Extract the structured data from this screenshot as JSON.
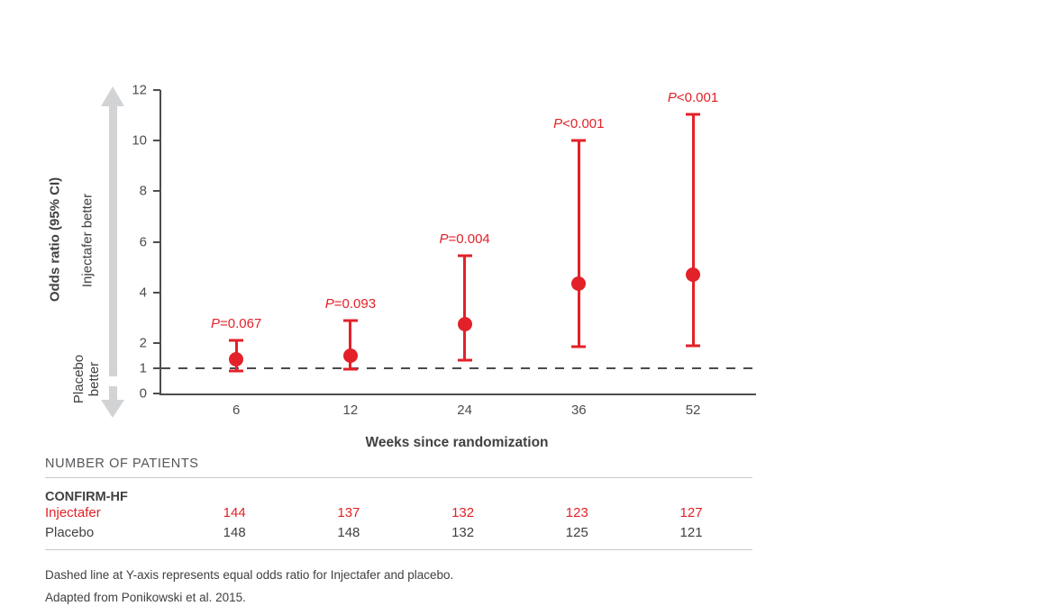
{
  "colors": {
    "red": "#e32128",
    "axis": "#4d4d4f",
    "text_dark": "#414042",
    "arrow_gray": "#d2d3d5",
    "rule_gray": "#c8c9cb"
  },
  "chart": {
    "y_axis_label": "Odds ratio (95% CI)",
    "x_axis_label": "Weeks since randomization",
    "direction_up_label": "Injectafer better",
    "direction_down_label": "Placebo\nbetter"
  },
  "chart_data": {
    "type": "scatter",
    "title": "",
    "xlabel": "Weeks since randomization",
    "ylabel": "Odds ratio (95% CI)",
    "ylim": [
      0,
      12
    ],
    "yticks": [
      0,
      1,
      2,
      4,
      6,
      8,
      10,
      12
    ],
    "x": [
      6,
      12,
      24,
      36,
      52
    ],
    "x_tick_labels": [
      "6",
      "12",
      "24",
      "36",
      "52"
    ],
    "reference_line_y": 1,
    "grid": false,
    "legend": "none",
    "series": [
      {
        "name": "Injectafer vs placebo odds ratio (95% CI)",
        "points": [
          {
            "week": 6,
            "or": 1.35,
            "ci_low": 0.9,
            "ci_high": 2.1,
            "p_label": "P=0.067"
          },
          {
            "week": 12,
            "or": 1.5,
            "ci_low": 0.95,
            "ci_high": 2.9,
            "p_label": "P=0.093"
          },
          {
            "week": 24,
            "or": 2.75,
            "ci_low": 1.3,
            "ci_high": 5.45,
            "p_label": "P=0.004"
          },
          {
            "week": 36,
            "or": 4.35,
            "ci_low": 1.85,
            "ci_high": 10.0,
            "p_label": "P<0.001"
          },
          {
            "week": 52,
            "or": 4.7,
            "ci_low": 1.9,
            "ci_high": 11.05,
            "p_label": "P<0.001"
          }
        ]
      }
    ]
  },
  "patients_table": {
    "heading": "NUMBER OF PATIENTS",
    "study": "CONFIRM-HF",
    "rows": [
      {
        "label": "Injectafer",
        "color": "red",
        "values": [
          "144",
          "137",
          "132",
          "123",
          "127"
        ]
      },
      {
        "label": "Placebo",
        "color": "dark",
        "values": [
          "148",
          "148",
          "132",
          "125",
          "121"
        ]
      }
    ]
  },
  "footnotes": [
    "Dashed line at Y-axis represents equal odds ratio for Injectafer and placebo.",
    "Adapted from Ponikowski et al. 2015."
  ]
}
